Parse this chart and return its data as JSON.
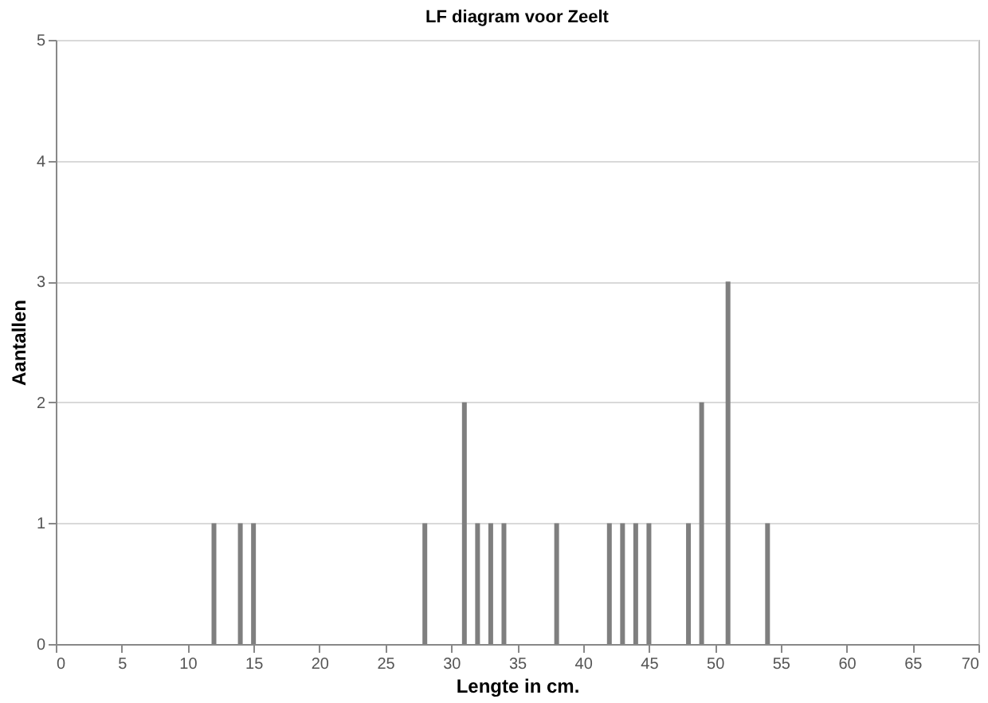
{
  "chart_data": {
    "type": "bar",
    "title": "LF diagram voor Zeelt",
    "xlabel": "Lengte in cm.",
    "ylabel": "Aantallen",
    "x": [
      12,
      14,
      15,
      28,
      31,
      32,
      33,
      34,
      38,
      42,
      43,
      44,
      45,
      48,
      49,
      51,
      54
    ],
    "values": [
      1,
      1,
      1,
      1,
      2,
      1,
      1,
      1,
      1,
      1,
      1,
      1,
      1,
      1,
      2,
      3,
      1
    ],
    "color": "#7f7f7f",
    "xlim": [
      0,
      70
    ],
    "xticks": [
      0,
      5,
      10,
      15,
      20,
      25,
      30,
      35,
      40,
      45,
      50,
      55,
      60,
      65,
      70
    ],
    "ylim": [
      0,
      5
    ],
    "yticks": [
      0,
      1,
      2,
      3,
      4,
      5
    ],
    "grid": "y"
  }
}
